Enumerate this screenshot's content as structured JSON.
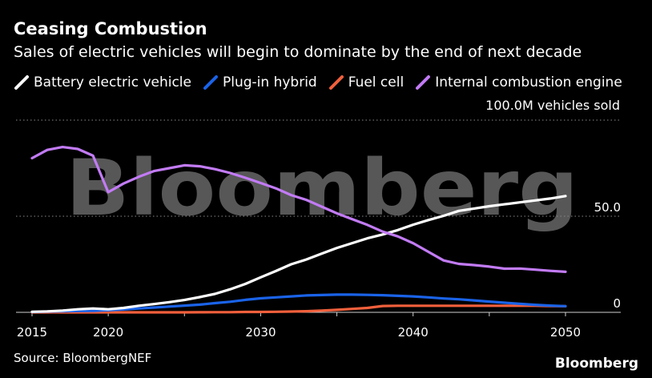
{
  "header": {
    "title": "Ceasing Combustion",
    "subtitle": "Sales of electric vehicles will begin to dominate by the end of next decade"
  },
  "footer": {
    "source": "Source: BloombergNEF",
    "brand": "Bloomberg"
  },
  "watermark": "Bloomberg",
  "chart_data": {
    "type": "line",
    "title": "Ceasing Combustion",
    "subtitle": "Sales of electric vehicles will begin to dominate by the end of next decade",
    "xlabel": "",
    "ylabel": "100.0M vehicles sold",
    "xlim": [
      2015,
      2053
    ],
    "ylim": [
      0,
      100
    ],
    "x_ticks": [
      2015,
      2020,
      2030,
      2040,
      2050
    ],
    "x_tick_labels": [
      "2015",
      "2020",
      "2030",
      "2040",
      "2050"
    ],
    "y_ticks": [
      0,
      50,
      100
    ],
    "y_tick_labels": [
      "0",
      "50.0",
      "100.0M vehicles sold"
    ],
    "grid": true,
    "legend_position": "top-left",
    "series": [
      {
        "name": "Battery electric vehicle",
        "color": "#ffffff",
        "x": [
          2015,
          2016,
          2017,
          2018,
          2019,
          2020,
          2021,
          2022,
          2023,
          2024,
          2025,
          2026,
          2027,
          2028,
          2029,
          2030,
          2031,
          2032,
          2033,
          2034,
          2035,
          2036,
          2037,
          2038,
          2039,
          2040,
          2041,
          2042,
          2043,
          2044,
          2045,
          2046,
          2047,
          2048,
          2049,
          2050
        ],
        "values": [
          0.3,
          0.5,
          0.9,
          1.6,
          2.0,
          1.6,
          2.3,
          3.4,
          4.3,
          5.3,
          6.4,
          7.9,
          9.6,
          12.0,
          14.8,
          18.2,
          21.5,
          25.0,
          27.5,
          30.5,
          33.5,
          36.0,
          38.5,
          40.5,
          42.8,
          45.6,
          48.0,
          50.2,
          52.8,
          54.0,
          55.2,
          56.2,
          57.2,
          58.2,
          59.2,
          60.5
        ]
      },
      {
        "name": "Plug-in hybrid",
        "color": "#1a63e8",
        "x": [
          2015,
          2016,
          2017,
          2018,
          2019,
          2020,
          2021,
          2022,
          2023,
          2024,
          2025,
          2026,
          2027,
          2028,
          2029,
          2030,
          2031,
          2032,
          2033,
          2034,
          2035,
          2036,
          2037,
          2038,
          2039,
          2040,
          2041,
          2042,
          2043,
          2044,
          2045,
          2046,
          2047,
          2048,
          2049,
          2050
        ],
        "values": [
          0.2,
          0.4,
          0.6,
          0.7,
          0.8,
          1.1,
          1.5,
          2.0,
          2.5,
          3.0,
          3.5,
          4.0,
          4.8,
          5.5,
          6.5,
          7.3,
          7.8,
          8.3,
          8.8,
          9.0,
          9.2,
          9.2,
          9.1,
          8.9,
          8.6,
          8.3,
          7.8,
          7.2,
          6.8,
          6.2,
          5.6,
          5.0,
          4.4,
          3.9,
          3.5,
          3.2
        ]
      },
      {
        "name": "Fuel cell",
        "color": "#f1603c",
        "x": [
          2015,
          2016,
          2017,
          2018,
          2019,
          2020,
          2021,
          2022,
          2023,
          2024,
          2025,
          2026,
          2027,
          2028,
          2029,
          2030,
          2031,
          2032,
          2033,
          2034,
          2035,
          2036,
          2037,
          2038,
          2039,
          2040,
          2041,
          2042,
          2043,
          2044,
          2045,
          2046,
          2047,
          2048,
          2049,
          2050
        ],
        "values": [
          0,
          0,
          0,
          0,
          0,
          0,
          0,
          0,
          0,
          0,
          0,
          0.05,
          0.1,
          0.1,
          0.2,
          0.2,
          0.3,
          0.4,
          0.6,
          0.9,
          1.3,
          1.8,
          2.3,
          3.3,
          3.4,
          3.4,
          3.4,
          3.4,
          3.4,
          3.4,
          3.4,
          3.4,
          3.4,
          3.4,
          3.3,
          3.2
        ]
      },
      {
        "name": "Internal combustion engine",
        "color": "#c27bf5",
        "x": [
          2015,
          2016,
          2017,
          2018,
          2019,
          2020,
          2021,
          2022,
          2023,
          2024,
          2025,
          2026,
          2027,
          2028,
          2029,
          2030,
          2031,
          2032,
          2033,
          2034,
          2035,
          2036,
          2037,
          2038,
          2039,
          2040,
          2041,
          2042,
          2043,
          2044,
          2045,
          2046,
          2047,
          2048,
          2049,
          2050
        ],
        "values": [
          80.2,
          84.5,
          86.0,
          85.0,
          81.5,
          62.5,
          67.0,
          70.5,
          73.5,
          75.0,
          76.5,
          76.0,
          74.5,
          72.5,
          70.0,
          67.3,
          64.5,
          61.0,
          58.5,
          55.0,
          51.5,
          48.5,
          45.5,
          42.0,
          39.5,
          36.0,
          31.5,
          27.0,
          25.2,
          24.6,
          23.8,
          22.7,
          22.8,
          22.2,
          21.6,
          21.1
        ]
      }
    ]
  }
}
